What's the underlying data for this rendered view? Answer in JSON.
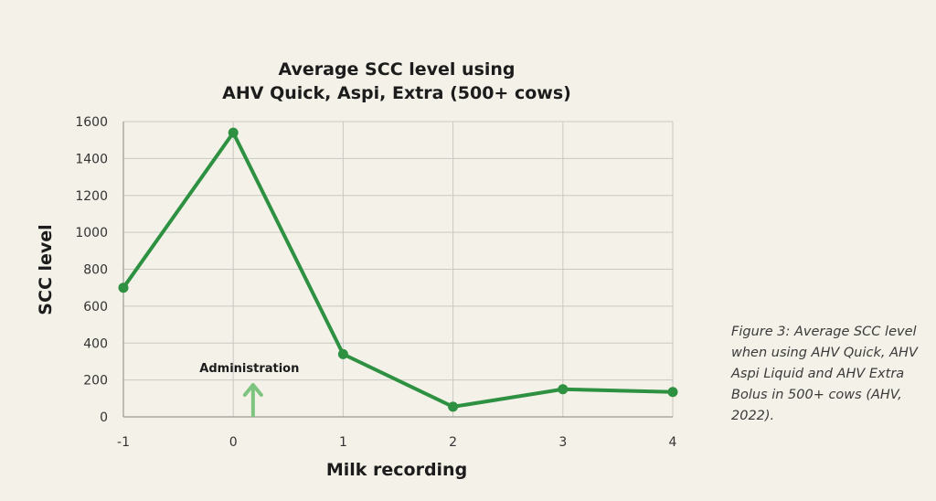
{
  "chart_data": {
    "type": "line",
    "title_lines": [
      "Average SCC level using",
      "AHV Quick, Aspi, Extra (500+ cows)"
    ],
    "xlabel": "Milk recording",
    "ylabel": "SCC level",
    "x": [
      -1,
      0,
      1,
      2,
      3,
      4
    ],
    "x_tick_labels": [
      "-1",
      "0",
      "1",
      "2",
      "3",
      "4"
    ],
    "y_ticks": [
      0,
      200,
      400,
      600,
      800,
      1000,
      1200,
      1400,
      1600
    ],
    "ylim": [
      0,
      1600
    ],
    "xlim": [
      -1,
      4
    ],
    "series": [
      {
        "values": [
          700,
          1540,
          340,
          55,
          150,
          135
        ]
      }
    ],
    "annotation": {
      "text": "Administration",
      "x": 0.18
    },
    "grid": true,
    "colors": {
      "line": "#2e9141",
      "arrow": "#7cc47f",
      "grid": "#c9c9c3",
      "axis": "#9a9a94"
    }
  },
  "caption": "Figure 3: Average SCC level when using AHV Quick, AHV Aspi Liquid and AHV Extra Bolus in 500+ cows (AHV, 2022)."
}
